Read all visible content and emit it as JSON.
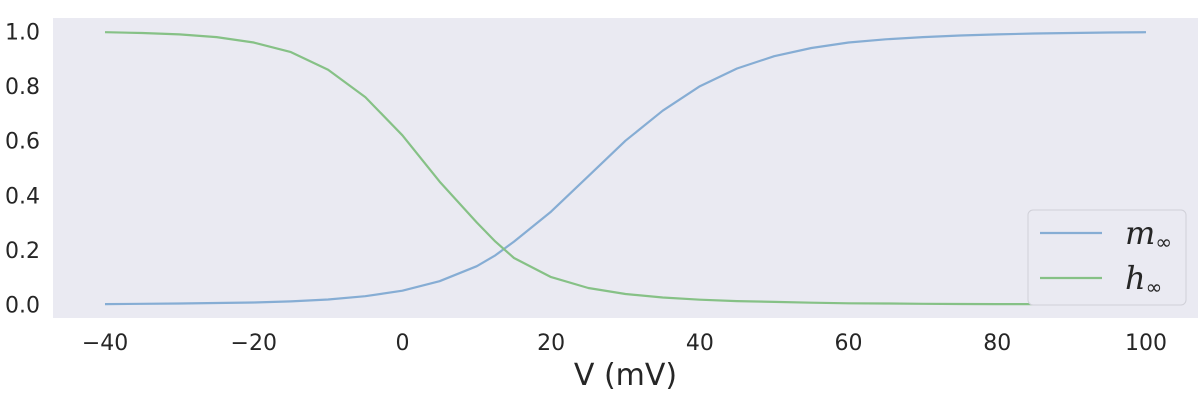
{
  "chart_data": {
    "type": "line",
    "title": "",
    "xlabel": "V (mV)",
    "ylabel": "",
    "xlim": [
      -47,
      107
    ],
    "ylim": [
      -0.05,
      1.05
    ],
    "xticks": [
      -40,
      -20,
      0,
      20,
      40,
      60,
      80,
      100
    ],
    "xtick_labels": [
      "−40",
      "−20",
      "0",
      "20",
      "40",
      "60",
      "80",
      "100"
    ],
    "yticks": [
      0.0,
      0.2,
      0.4,
      0.6,
      0.8,
      1.0
    ],
    "ytick_labels": [
      "0.0",
      "0.2",
      "0.4",
      "0.6",
      "0.8",
      "1.0"
    ],
    "grid": false,
    "legend": "lower-right",
    "background": "#EAEAF2",
    "x": [
      -40,
      -35,
      -30,
      -25,
      -20,
      -15,
      -10,
      -5,
      0,
      5,
      10,
      12.5,
      15,
      20,
      25,
      30,
      35,
      40,
      45,
      50,
      55,
      60,
      65,
      70,
      75,
      80,
      85,
      90,
      95,
      100
    ],
    "series": [
      {
        "name": "m∞",
        "base": "m",
        "sub": "∞",
        "color": "#86ADD4",
        "values": [
          0.001,
          0.002,
          0.003,
          0.005,
          0.007,
          0.011,
          0.018,
          0.03,
          0.05,
          0.085,
          0.14,
          0.18,
          0.23,
          0.34,
          0.47,
          0.6,
          0.71,
          0.8,
          0.865,
          0.91,
          0.94,
          0.96,
          0.972,
          0.98,
          0.986,
          0.99,
          0.993,
          0.995,
          0.997,
          0.998
        ]
      },
      {
        "name": "h∞",
        "base": "h",
        "sub": "∞",
        "color": "#86C186",
        "values": [
          0.998,
          0.995,
          0.99,
          0.98,
          0.96,
          0.925,
          0.86,
          0.76,
          0.62,
          0.45,
          0.3,
          0.23,
          0.17,
          0.1,
          0.06,
          0.038,
          0.025,
          0.017,
          0.012,
          0.009,
          0.006,
          0.004,
          0.003,
          0.002,
          0.0015,
          0.001,
          0.0008,
          0.0005,
          0.0003,
          0.0002
        ]
      }
    ]
  }
}
